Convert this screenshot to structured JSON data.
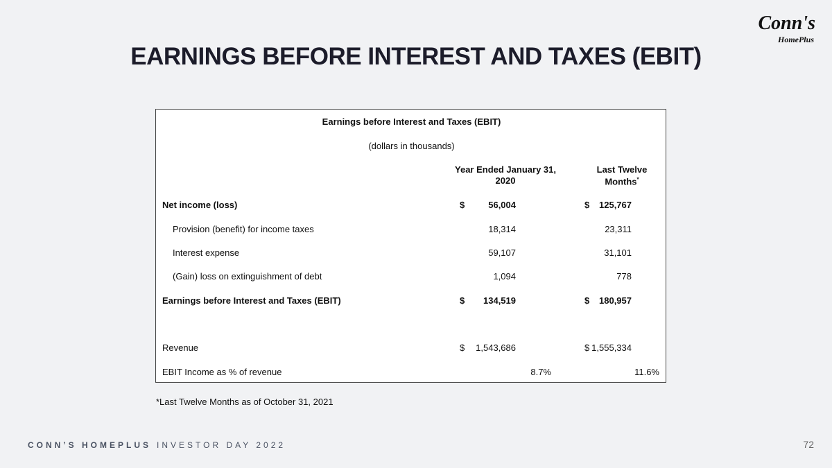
{
  "header": {
    "title": "EARNINGS BEFORE INTEREST AND TAXES (EBIT)",
    "logo": {
      "brand": "Conn's",
      "sub": "HomePlus"
    }
  },
  "table": {
    "title": "Earnings before Interest and Taxes (EBIT)",
    "subtitle": "(dollars in thousands)",
    "columns": [
      {
        "lines": [
          "Year Ended January 31,",
          "2020"
        ]
      },
      {
        "lines": [
          "Last Twelve",
          "Months"
        ],
        "marker": "*"
      }
    ],
    "rows": [
      {
        "label": "Net income (loss)",
        "bold": true,
        "cells": [
          {
            "currency": "$",
            "value": "56,004"
          },
          {
            "currency": "$",
            "value": "125,767"
          }
        ]
      },
      {
        "label": "Provision (benefit) for income taxes",
        "indent": true,
        "cells": [
          {
            "value": "18,314"
          },
          {
            "value": "23,311"
          }
        ]
      },
      {
        "label": "Interest expense",
        "indent": true,
        "cells": [
          {
            "value": "59,107"
          },
          {
            "value": "31,101"
          }
        ]
      },
      {
        "label": "(Gain) loss on extinguishment of debt",
        "indent": true,
        "cells": [
          {
            "value": "1,094"
          },
          {
            "value": "778"
          }
        ]
      },
      {
        "label": "Earnings before Interest and Taxes (EBIT)",
        "bold": true,
        "cells": [
          {
            "currency": "$",
            "value": "134,519"
          },
          {
            "currency": "$",
            "value": "180,957"
          }
        ]
      },
      {
        "label": "Revenue",
        "cells": [
          {
            "currency": "$",
            "value": "1,543,686"
          },
          {
            "currency": "$",
            "value": "1,555,334"
          }
        ]
      },
      {
        "label": "EBIT Income as % of revenue",
        "percent": true,
        "cells": [
          {
            "value": "8.7%"
          },
          {
            "value": "11.6%"
          }
        ]
      }
    ]
  },
  "footnote": "*Last Twelve Months as of October 31, 2021",
  "footer": {
    "brand": "CONN’S HOMEPLUS",
    "event": "INVESTOR DAY 2022",
    "page": "72"
  }
}
